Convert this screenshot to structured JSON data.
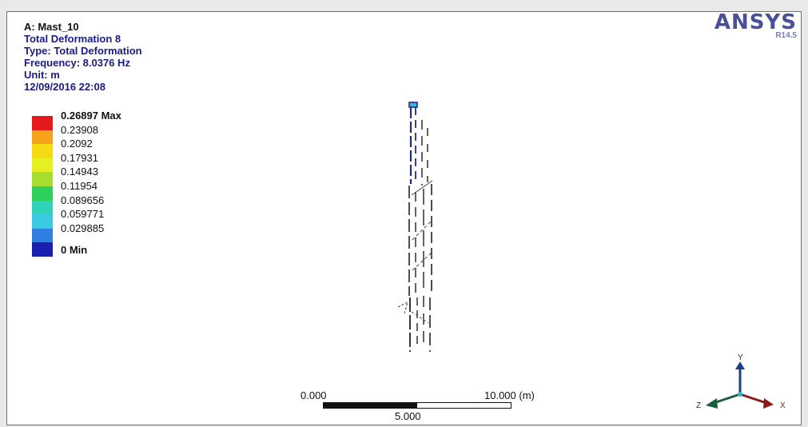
{
  "header": {
    "title": "A: Mast_10",
    "result_name": "Total Deformation 8",
    "type": "Type: Total Deformation",
    "frequency": "Frequency: 8.0376 Hz",
    "unit": "Unit: m",
    "timestamp": "12/09/2016 22:08"
  },
  "logo": {
    "brand": "ANSYS",
    "version": "R14.5"
  },
  "legend": {
    "entries": [
      {
        "label": "0.26897 Max",
        "color": "#e41a1c"
      },
      {
        "label": "0.23908",
        "color": "#f7a21b"
      },
      {
        "label": "0.2092",
        "color": "#f5dc12"
      },
      {
        "label": "0.17931",
        "color": "#e6ef22"
      },
      {
        "label": "0.14943",
        "color": "#a6dd2f"
      },
      {
        "label": "0.11954",
        "color": "#2dd05a"
      },
      {
        "label": "0.089656",
        "color": "#2ed3b8"
      },
      {
        "label": "0.059771",
        "color": "#3bc9e3"
      },
      {
        "label": "0.029885",
        "color": "#2e7fe0"
      }
    ],
    "min_label": "0 Min",
    "min_color": "#1b1fb0"
  },
  "scale_bar": {
    "left_label": "0.000",
    "right_label": "10.000 (m)",
    "mid_label": "5.000"
  },
  "triad": {
    "x": "X",
    "y": "Y",
    "z": "Z"
  }
}
